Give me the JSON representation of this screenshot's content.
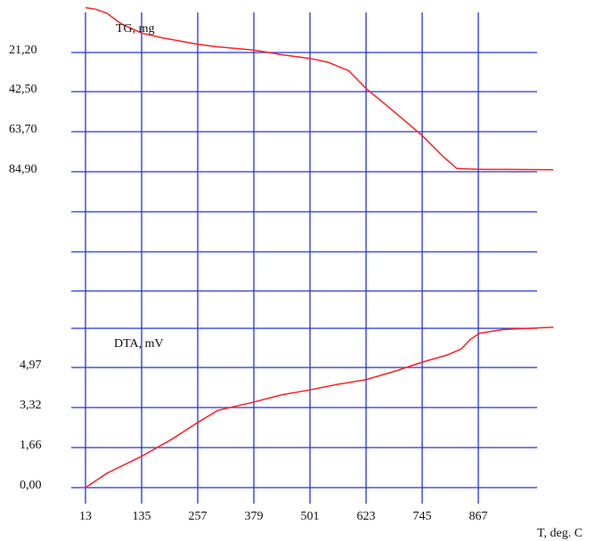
{
  "chart_data": {
    "type": "line",
    "colors": {
      "grid": "#2433d6",
      "series": "#ff2020",
      "background": "#ffffff"
    },
    "grid": true,
    "x_axis": {
      "label": "T, deg. C",
      "ticks": [
        "13",
        "135",
        "257",
        "379",
        "501",
        "623",
        "745",
        "867"
      ],
      "xlim": [
        13,
        1050
      ]
    },
    "panels": [
      {
        "id": "tg",
        "title": "TG, mg",
        "ylabels": [
          "21,20",
          "42,50",
          "63,70",
          "84,90"
        ],
        "series": [
          {
            "x": [
              13,
              35,
              60,
              90,
              135,
              180,
              257,
              300,
              379,
              440,
              501,
              540,
              585,
              623,
              680,
              745,
              790,
              820,
              850,
              880,
              930,
              1030
            ],
            "y": [
              -12.0,
              -11.2,
              -9.0,
              -3.5,
              1.5,
              4.0,
              7.5,
              8.8,
              10.5,
              13.0,
              15.0,
              17.0,
              21.5,
              31.0,
              42.5,
              56.0,
              67.0,
              73.5,
              73.8,
              74.0,
              74.0,
              74.2
            ]
          }
        ]
      },
      {
        "id": "dta",
        "title": "DTA, mV",
        "ylabels": [
          "0,00",
          "1,66",
          "3,32",
          "4,97"
        ],
        "series": [
          {
            "x": [
              13,
              60,
              135,
              200,
              257,
              300,
              379,
              440,
              501,
              560,
              623,
              690,
              745,
              800,
              830,
              850,
              870,
              920,
              1030
            ],
            "y": [
              0.0,
              0.6,
              1.3,
              2.0,
              2.7,
              3.2,
              3.55,
              3.85,
              4.05,
              4.28,
              4.48,
              4.85,
              5.2,
              5.5,
              5.75,
              6.15,
              6.4,
              6.55,
              6.65
            ]
          }
        ]
      }
    ]
  }
}
